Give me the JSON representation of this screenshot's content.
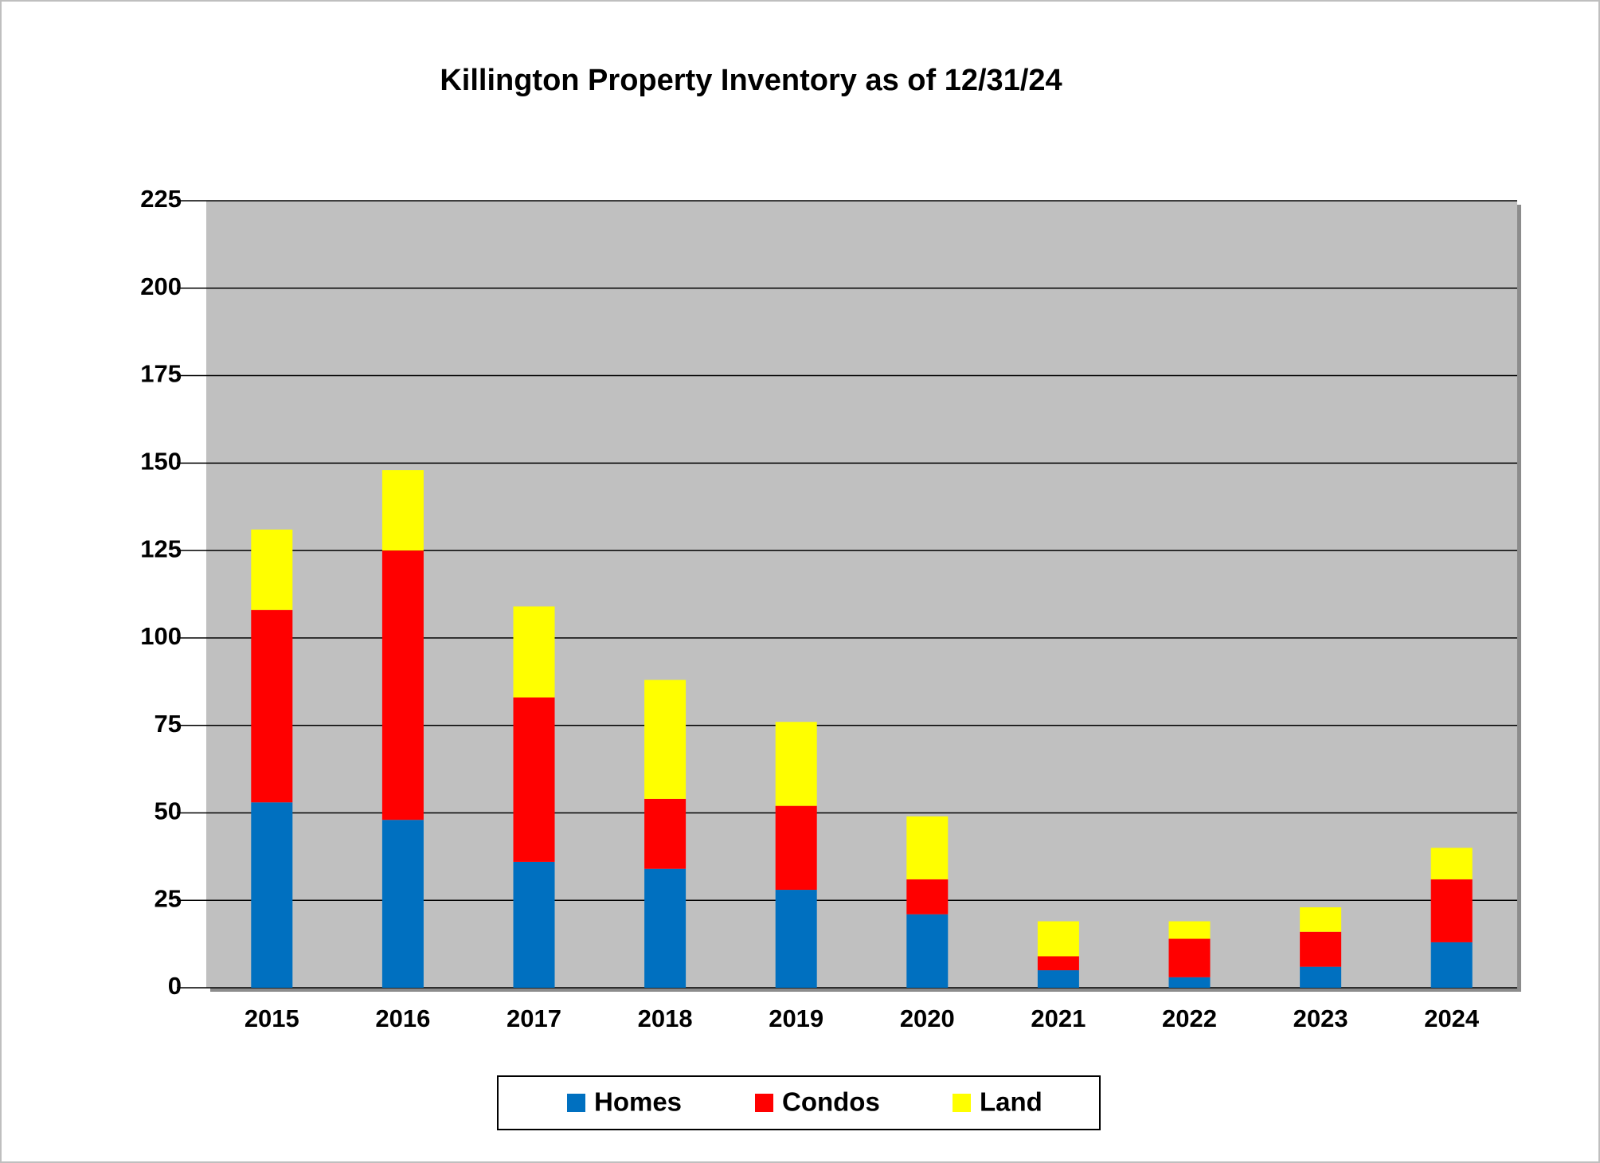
{
  "chart_data": {
    "type": "stacked_bar",
    "title": "Killington Property Inventory as of 12/31/24",
    "categories": [
      "2015",
      "2016",
      "2017",
      "2018",
      "2019",
      "2020",
      "2021",
      "2022",
      "2023",
      "2024"
    ],
    "series": [
      {
        "name": "Homes",
        "color": "#0070c0",
        "values": [
          53,
          48,
          36,
          34,
          28,
          21,
          5,
          3,
          6,
          13
        ]
      },
      {
        "name": "Condos",
        "color": "#ff0000",
        "values": [
          55,
          77,
          47,
          20,
          24,
          10,
          4,
          11,
          10,
          18
        ]
      },
      {
        "name": "Land",
        "color": "#ffff00",
        "values": [
          23,
          23,
          26,
          34,
          24,
          18,
          10,
          5,
          7,
          9
        ]
      }
    ],
    "ylim": [
      0,
      225
    ],
    "yticks": [
      0,
      25,
      50,
      75,
      100,
      125,
      150,
      175,
      200,
      225
    ],
    "grid": true,
    "legend": "bottom"
  }
}
